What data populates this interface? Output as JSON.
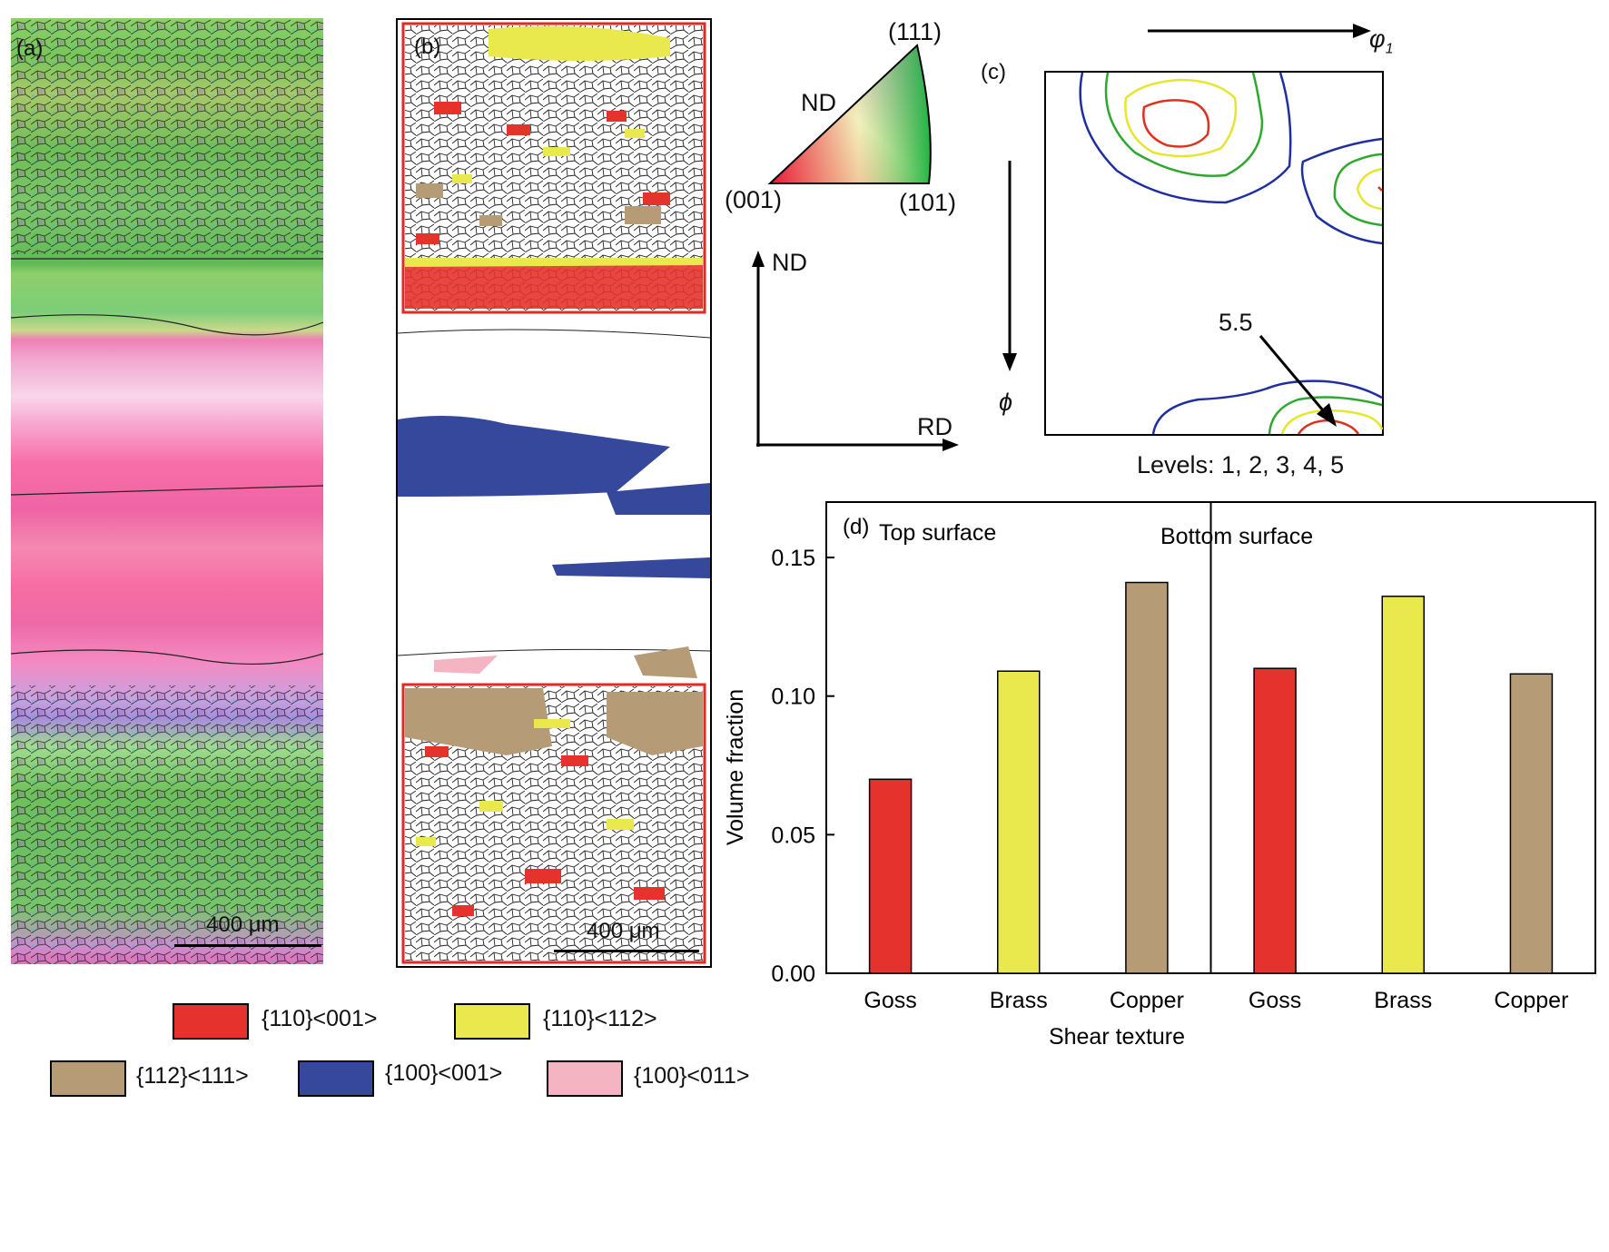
{
  "panel_a": {
    "label": "(a)",
    "scale_bar": "400 μm"
  },
  "panel_b": {
    "label": "(b)",
    "scale_bar": "400 μm"
  },
  "ipf_key": {
    "corner_111": "(111)",
    "corner_001": "(001)",
    "corner_101": "(101)",
    "side_label": "ND"
  },
  "axes_key": {
    "up": "ND",
    "right": "RD"
  },
  "panel_c": {
    "label": "(c)",
    "phi1": "φ",
    "phi1_sub": "1",
    "phi": "ϕ",
    "peak_label": "5.5",
    "levels_text": "Levels: 1, 2, 3, 4, 5",
    "contour_colors": [
      "#1f2fa0",
      "#2ea82e",
      "#e6e62e",
      "#e0301e"
    ]
  },
  "legend": [
    {
      "label": "{110}<001>",
      "color": "#e5322c"
    },
    {
      "label": "{110}<112>",
      "color": "#e9e84d"
    },
    {
      "label": "{112}<111>",
      "color": "#b59c76"
    },
    {
      "label": "{100}<001>",
      "color": "#36489c"
    },
    {
      "label": "{100}<011>",
      "color": "#f5b4c2"
    }
  ],
  "chart_data": {
    "type": "bar",
    "panel_label": "(d)",
    "ylabel": "Volume fraction",
    "xlabel": "Shear texture",
    "ylim": [
      0,
      0.17
    ],
    "yticks": [
      "0.00",
      "0.05",
      "0.10",
      "0.15"
    ],
    "ytick_values": [
      0,
      0.05,
      0.1,
      0.15
    ],
    "groups": [
      {
        "name": "Top surface",
        "categories": [
          "Goss",
          "Brass",
          "Copper"
        ],
        "values": [
          0.07,
          0.109,
          0.141
        ],
        "colors": [
          "#e5322c",
          "#e9e84d",
          "#b59c76"
        ]
      },
      {
        "name": "Bottom surface",
        "categories": [
          "Goss",
          "Brass",
          "Copper"
        ],
        "values": [
          0.11,
          0.136,
          0.108
        ],
        "colors": [
          "#e5322c",
          "#e9e84d",
          "#b59c76"
        ]
      }
    ]
  }
}
